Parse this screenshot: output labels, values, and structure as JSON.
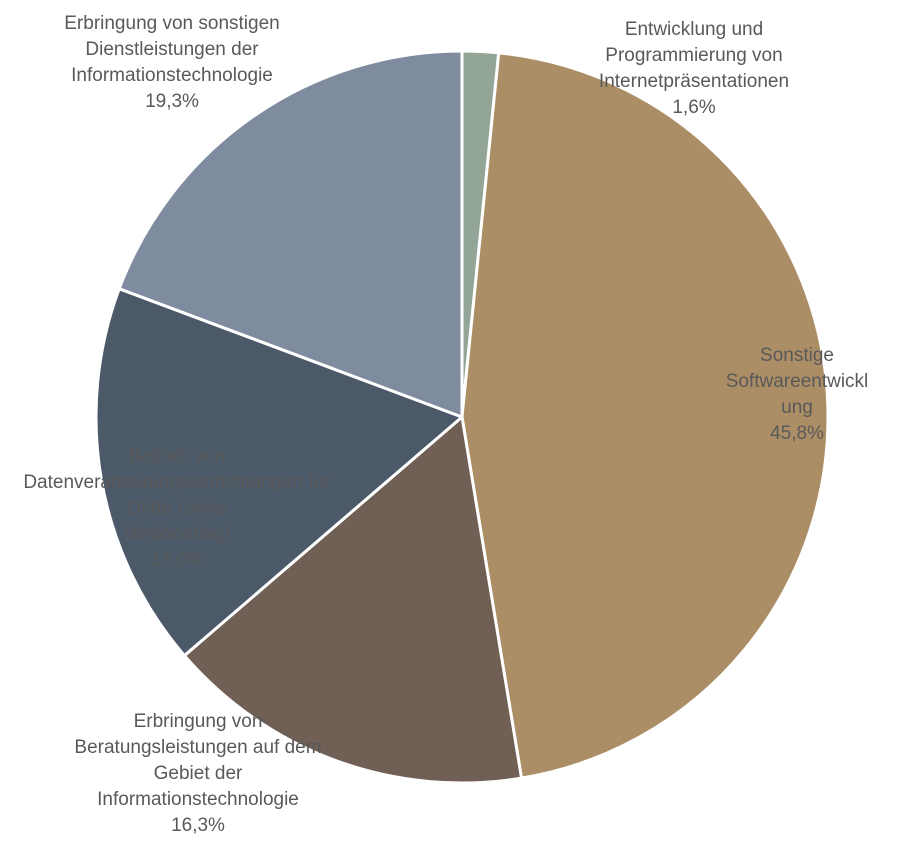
{
  "chart_data": {
    "type": "pie",
    "title": "",
    "slices": [
      {
        "label_lines": [
          "Entwicklung und",
          "Programmierung von",
          "Internetpräsentationen"
        ],
        "value_label": "1,6%",
        "value": 1.6,
        "color": "#93a597",
        "label_color": "#595959"
      },
      {
        "label_lines": [
          "Sonstige",
          "Softwareentwickl",
          "ung"
        ],
        "value_label": "45,8%",
        "value": 45.8,
        "color": "#ab8e66",
        "label_color": "#595959"
      },
      {
        "label_lines": [
          "Erbringung von",
          "Beratungsleistungen auf dem",
          "Gebiet der",
          "Informationstechnologie"
        ],
        "value_label": "16,3%",
        "value": 16.3,
        "color": "#6f5f54",
        "label_color": "#595959"
      },
      {
        "label_lines": [
          "Betrieb von",
          "Datenverarbeitungseinrichtungen für",
          "Dritte (ohne",
          "Webhosting)"
        ],
        "value_label": "17,0%",
        "value": 17.0,
        "color": "#4b5969",
        "label_color": "#595959"
      },
      {
        "label_lines": [
          "Erbringung von sonstigen",
          "Dienstleistungen der",
          "Informationstechnologie"
        ],
        "value_label": "19,3%",
        "value": 19.3,
        "color": "#7f8b9e",
        "label_color": "#595959"
      }
    ]
  }
}
